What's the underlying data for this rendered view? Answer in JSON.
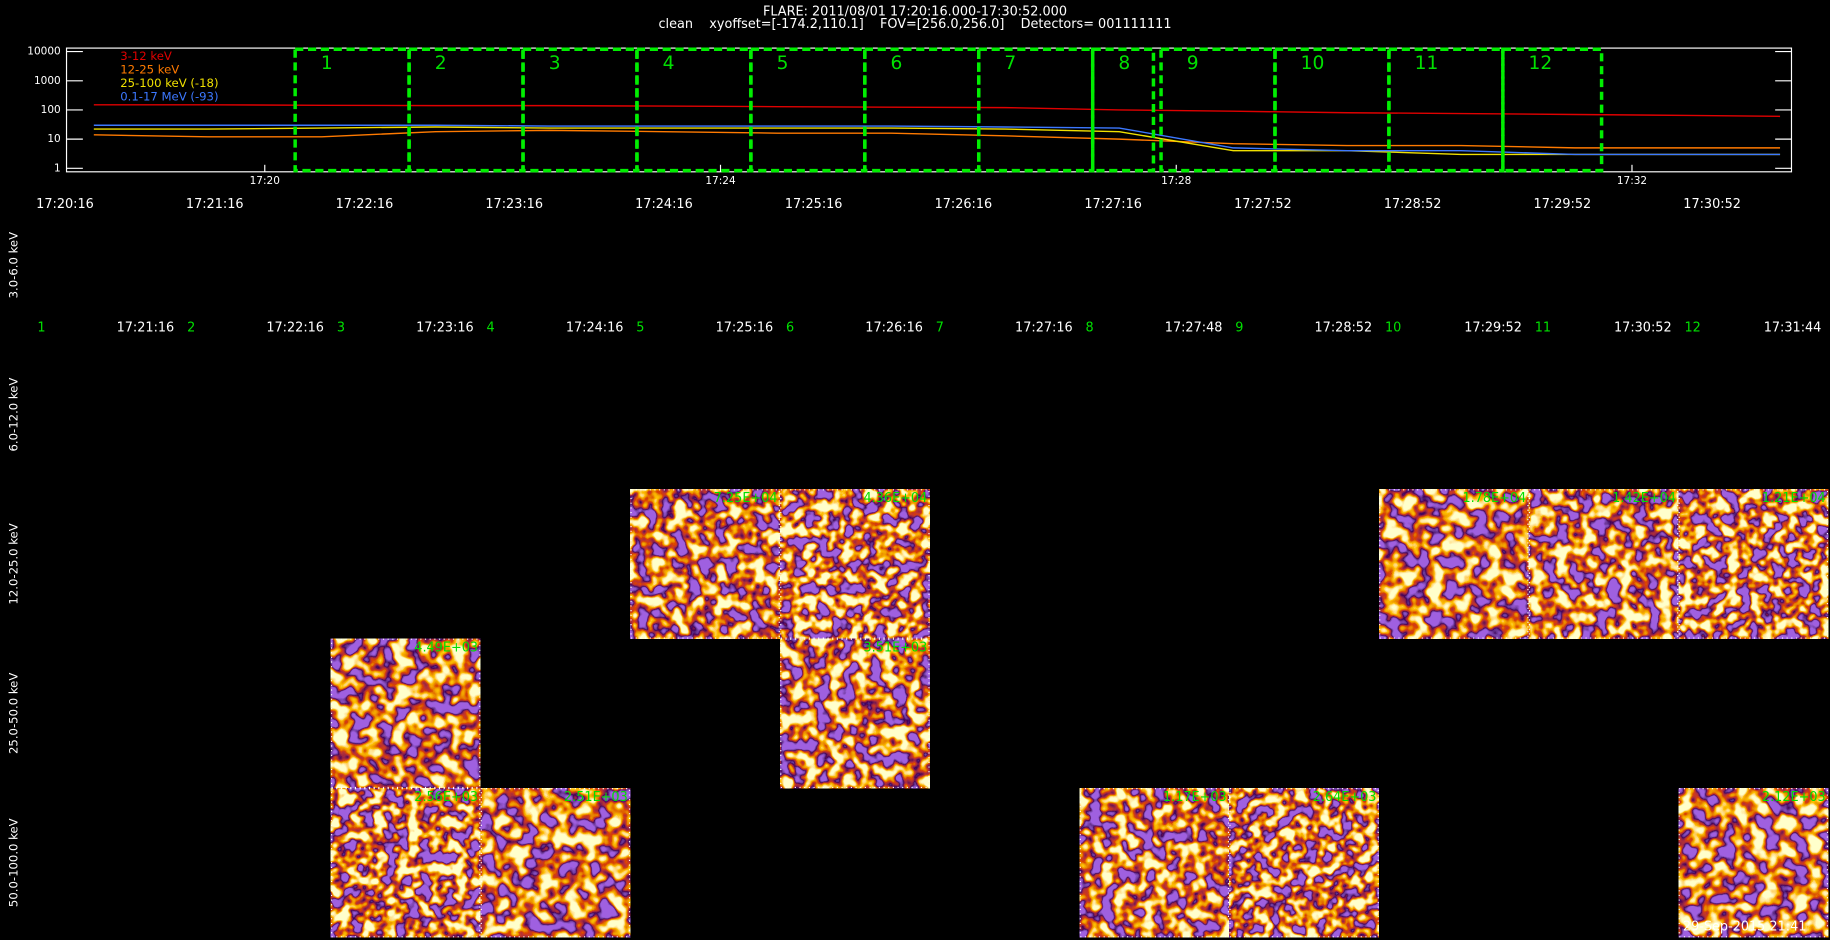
{
  "header": {
    "title": "FLARE: 2011/08/01 17:20:16.000-17:30:52.000",
    "subtitle": "clean    xyoffset=[-174.2,110.1]    FOV=[256.0,256.0]    Detectors= 001111111"
  },
  "chart_data": {
    "type": "line",
    "log_y": true,
    "ylim": [
      1,
      10000
    ],
    "yticks": [
      1,
      10,
      100,
      1000,
      10000
    ],
    "xlim": [
      1038.26,
      1053.4
    ],
    "xticks": [
      {
        "value": 1040,
        "label": "17:20"
      },
      {
        "value": 1044,
        "label": "17:24"
      },
      {
        "value": 1048,
        "label": "17:28"
      },
      {
        "value": 1052,
        "label": "17:32"
      }
    ],
    "x": [
      1038.5,
      1039.5,
      1040.5,
      1041.5,
      1042.5,
      1043.5,
      1044.5,
      1045.5,
      1046.5,
      1047.5,
      1048.5,
      1049.5,
      1050.5,
      1051.5,
      1052.5,
      1053.3
    ],
    "series": [
      {
        "name": "3-12 keV",
        "color": "#e00000",
        "values": [
          150,
          150,
          145,
          140,
          140,
          135,
          130,
          125,
          120,
          100,
          90,
          80,
          75,
          70,
          65,
          60
        ]
      },
      {
        "name": "12-25 keV",
        "color": "#ff7a00",
        "values": [
          14,
          12,
          12,
          18,
          20,
          18,
          16,
          16,
          13,
          10,
          7,
          6,
          6,
          5,
          5,
          5
        ]
      },
      {
        "name": "25-100 keV (-18)",
        "color": "#f0e000",
        "values": [
          22,
          22,
          24,
          26,
          24,
          24,
          24,
          24,
          22,
          18,
          4,
          4,
          3,
          3,
          3,
          3
        ]
      },
      {
        "name": "0.1-17 MeV (-93)",
        "color": "#3c78ff",
        "values": [
          30,
          30,
          30,
          30,
          28,
          28,
          28,
          28,
          26,
          24,
          5,
          4,
          4,
          3,
          3,
          3
        ]
      }
    ]
  },
  "intervals": [
    {
      "label": "1",
      "start": "17:20:16",
      "end": "17:21:16"
    },
    {
      "label": "2",
      "start": "17:21:16",
      "end": "17:22:16"
    },
    {
      "label": "3",
      "start": "17:22:16",
      "end": "17:23:16"
    },
    {
      "label": "4",
      "start": "17:23:16",
      "end": "17:24:16"
    },
    {
      "label": "5",
      "start": "17:24:16",
      "end": "17:25:16"
    },
    {
      "label": "6",
      "start": "17:25:16",
      "end": "17:26:16"
    },
    {
      "label": "7",
      "start": "17:26:16",
      "end": "17:27:16"
    },
    {
      "label": "8",
      "start": "17:27:16",
      "end": "17:27:48"
    },
    {
      "label": "9",
      "start": "17:27:52",
      "end": "17:28:52"
    },
    {
      "label": "10",
      "start": "17:28:52",
      "end": "17:29:52"
    },
    {
      "label": "11",
      "start": "17:29:52",
      "end": "17:30:52"
    },
    {
      "label": "12",
      "start": "17:30:52",
      "end": "17:31:44"
    }
  ],
  "energy_bands": [
    "3.0-6.0 keV",
    "6.0-12.0 keV",
    "12.0-25.0 keV",
    "25.0-50.0 keV",
    "50.0-100.0 keV"
  ],
  "image_grid": [
    [
      null,
      null,
      null,
      null,
      null,
      null,
      null,
      null,
      null,
      null,
      null,
      null
    ],
    [
      null,
      null,
      null,
      null,
      null,
      null,
      null,
      null,
      null,
      null,
      null,
      null
    ],
    [
      null,
      null,
      null,
      null,
      "7.25E+04",
      "4.36E+04",
      null,
      null,
      null,
      "1.78E+04",
      "1.42E+04",
      "1.21E+04"
    ],
    [
      null,
      null,
      "4.49E+03",
      null,
      null,
      "3.51E+03",
      null,
      null,
      null,
      null,
      null,
      null
    ],
    [
      null,
      null,
      "2.56E+03",
      "2.51E+03",
      null,
      null,
      null,
      "1.17E+03",
      "2.64E+03",
      null,
      null,
      "2.12E+03"
    ]
  ],
  "footer": "29-Sep-2015 21:41"
}
